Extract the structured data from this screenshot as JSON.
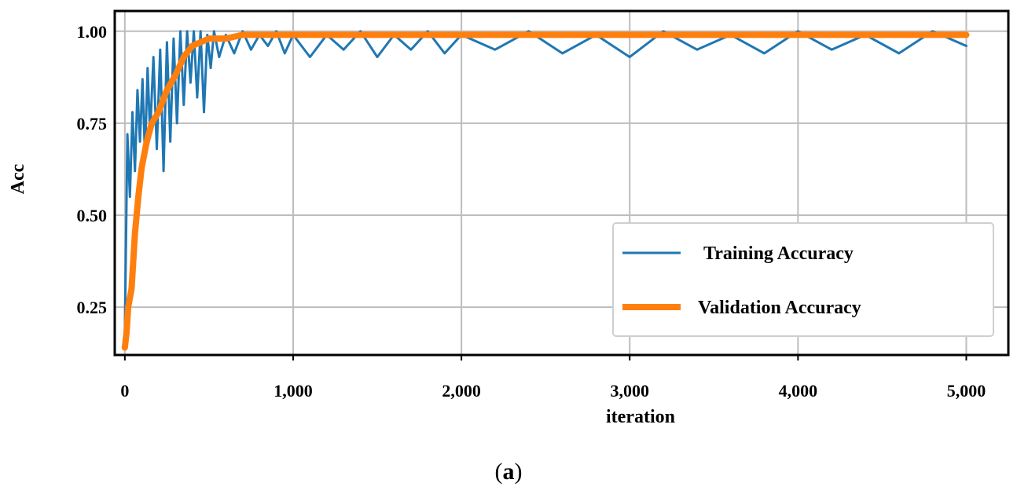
{
  "chart_data": {
    "type": "line",
    "xlabel": "iteration",
    "ylabel": "Acc",
    "xlim": [
      -60,
      5250
    ],
    "ylim": [
      0.12,
      1.055
    ],
    "x_ticks": [
      0,
      1000,
      2000,
      3000,
      4000,
      5000
    ],
    "x_tick_labels": [
      "0",
      "1,000",
      "2,000",
      "3,000",
      "4,000",
      "5,000"
    ],
    "y_ticks": [
      0.25,
      0.5,
      0.75,
      1.0
    ],
    "y_tick_labels": [
      "0.25",
      "0.50",
      "0.75",
      "1.00"
    ],
    "grid": true,
    "legend_position": "lower-right",
    "series": [
      {
        "name": "Training Accuracy",
        "color": "#1f77b4",
        "x": [
          0,
          15,
          30,
          45,
          60,
          75,
          90,
          105,
          120,
          135,
          150,
          170,
          190,
          210,
          230,
          250,
          270,
          290,
          310,
          330,
          350,
          370,
          390,
          410,
          430,
          450,
          470,
          490,
          510,
          530,
          560,
          600,
          650,
          700,
          750,
          800,
          850,
          900,
          950,
          1000,
          1100,
          1200,
          1300,
          1400,
          1500,
          1600,
          1700,
          1800,
          1900,
          2000,
          2200,
          2400,
          2600,
          2800,
          3000,
          3200,
          3400,
          3600,
          3800,
          4000,
          4200,
          4400,
          4600,
          4800,
          5000
        ],
        "y": [
          0.18,
          0.72,
          0.55,
          0.78,
          0.62,
          0.84,
          0.7,
          0.87,
          0.66,
          0.9,
          0.72,
          0.93,
          0.68,
          0.95,
          0.62,
          0.97,
          0.7,
          0.98,
          0.75,
          1.0,
          0.8,
          1.0,
          0.86,
          1.0,
          0.82,
          1.0,
          0.78,
          0.99,
          0.9,
          1.0,
          0.93,
          0.99,
          0.94,
          1.0,
          0.95,
          0.99,
          0.96,
          1.0,
          0.94,
          0.99,
          0.93,
          0.99,
          0.95,
          1.0,
          0.93,
          0.99,
          0.95,
          1.0,
          0.94,
          0.99,
          0.95,
          1.0,
          0.94,
          0.99,
          0.93,
          1.0,
          0.95,
          0.99,
          0.94,
          1.0,
          0.95,
          0.99,
          0.94,
          1.0,
          0.96
        ]
      },
      {
        "name": "Validation Accuracy",
        "color": "#ff7f0e",
        "x": [
          0,
          10,
          20,
          40,
          60,
          80,
          100,
          130,
          160,
          200,
          250,
          300,
          350,
          400,
          450,
          500,
          600,
          700,
          800,
          900,
          1000,
          1500,
          2000,
          3000,
          4000,
          5000
        ],
        "y": [
          0.14,
          0.18,
          0.25,
          0.3,
          0.45,
          0.55,
          0.63,
          0.7,
          0.75,
          0.78,
          0.84,
          0.88,
          0.93,
          0.96,
          0.97,
          0.98,
          0.98,
          0.99,
          0.99,
          0.99,
          0.99,
          0.99,
          0.99,
          0.99,
          0.99,
          0.99
        ]
      }
    ]
  },
  "caption": {
    "open": "(",
    "label": "a",
    "close": ")"
  }
}
